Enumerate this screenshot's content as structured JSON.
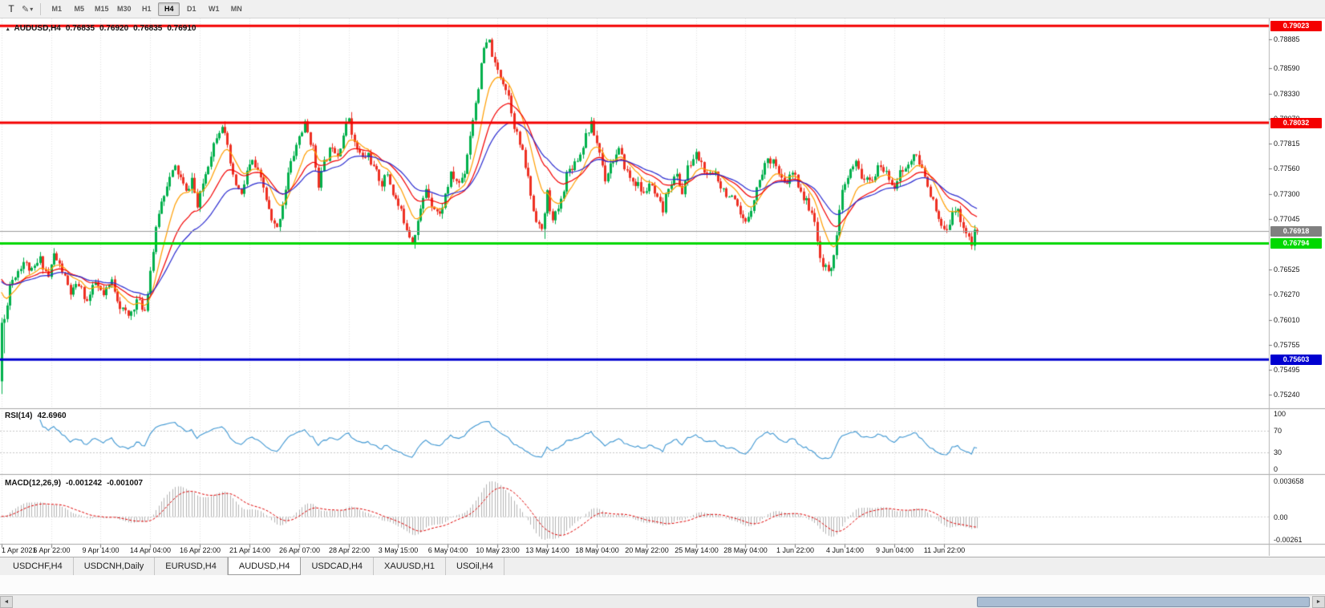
{
  "toolbar": {
    "letter_button": "T",
    "timeframes": [
      "M1",
      "M5",
      "M15",
      "M30",
      "H1",
      "H4",
      "D1",
      "W1",
      "MN"
    ],
    "active_timeframe": "H4"
  },
  "icons": {
    "chart_marker": "▴",
    "pencil": "✎",
    "caret": "▾",
    "scroll_left": "◄",
    "scroll_right": "►"
  },
  "tabs": [
    {
      "label": "USDCHF,H4"
    },
    {
      "label": "USDCNH,Daily"
    },
    {
      "label": "EURUSD,H4"
    },
    {
      "label": "AUDUSD,H4",
      "active": true
    },
    {
      "label": "USDCAD,H4"
    },
    {
      "label": "XAUUSD,H1"
    },
    {
      "label": "USOil,H4"
    }
  ],
  "scrollbar": {
    "thumb_start": 0.742,
    "thumb_span": 0.256,
    "left_glyph": "◄",
    "right_glyph": "►"
  },
  "chart_data": {
    "type": "candlestick",
    "title": "AUDUSD,H4",
    "ohlc_display": [
      "0.76835",
      "0.76920",
      "0.76835",
      "0.76910"
    ],
    "price_axis": {
      "min": 0.7512,
      "max": 0.791,
      "ticks": [
        "0.78885",
        "0.78590",
        "0.78330",
        "0.78070",
        "0.77815",
        "0.77560",
        "0.77300",
        "0.77045",
        "0.76525",
        "0.76270",
        "0.76010",
        "0.75755",
        "0.75495",
        "0.75240"
      ]
    },
    "time_ticks": [
      "1 Apr 2021",
      "6 Apr 22:00",
      "9 Apr 14:00",
      "14 Apr 04:00",
      "16 Apr 22:00",
      "21 Apr 14:00",
      "26 Apr 07:00",
      "28 Apr 22:00",
      "3 May 15:00",
      "6 May 04:00",
      "10 May 23:00",
      "13 May 14:00",
      "18 May 04:00",
      "20 May 22:00",
      "25 May 14:00",
      "28 May 04:00",
      "1 Jun 22:00",
      "4 Jun 14:00",
      "9 Jun 04:00",
      "11 Jun 22:00"
    ],
    "candles_per_time_tick": 18,
    "candle_count": 355,
    "first_candle": [
      0.7538,
      0.7603,
      0.7525,
      0.7598
    ],
    "last_close": 0.7691,
    "noise": 0.0009,
    "seed": 11,
    "price_path": [
      [
        0,
        0.7538
      ],
      [
        2,
        0.7601
      ],
      [
        4,
        0.7638
      ],
      [
        7,
        0.7652
      ],
      [
        9,
        0.7661
      ],
      [
        12,
        0.765
      ],
      [
        15,
        0.7663
      ],
      [
        18,
        0.7645
      ],
      [
        20,
        0.7668
      ],
      [
        23,
        0.7651
      ],
      [
        26,
        0.7628
      ],
      [
        29,
        0.7637
      ],
      [
        32,
        0.762
      ],
      [
        35,
        0.7639
      ],
      [
        38,
        0.7625
      ],
      [
        41,
        0.7641
      ],
      [
        44,
        0.7615
      ],
      [
        47,
        0.7604
      ],
      [
        50,
        0.7621
      ],
      [
        53,
        0.7611
      ],
      [
        55,
        0.7652
      ],
      [
        58,
        0.7712
      ],
      [
        61,
        0.7741
      ],
      [
        64,
        0.7757
      ],
      [
        66,
        0.7746
      ],
      [
        68,
        0.7731
      ],
      [
        70,
        0.7746
      ],
      [
        72,
        0.7716
      ],
      [
        74,
        0.7741
      ],
      [
        77,
        0.7772
      ],
      [
        79,
        0.7791
      ],
      [
        81,
        0.7802
      ],
      [
        83,
        0.7776
      ],
      [
        85,
        0.7746
      ],
      [
        88,
        0.7728
      ],
      [
        90,
        0.7753
      ],
      [
        92,
        0.7763
      ],
      [
        94,
        0.7751
      ],
      [
        96,
        0.7736
      ],
      [
        99,
        0.7701
      ],
      [
        101,
        0.7694
      ],
      [
        103,
        0.7721
      ],
      [
        105,
        0.7751
      ],
      [
        107,
        0.7771
      ],
      [
        109,
        0.7789
      ],
      [
        111,
        0.7801
      ],
      [
        114,
        0.7776
      ],
      [
        116,
        0.7741
      ],
      [
        118,
        0.7761
      ],
      [
        121,
        0.7781
      ],
      [
        123,
        0.7771
      ],
      [
        125,
        0.7791
      ],
      [
        127,
        0.7809
      ],
      [
        129,
        0.7781
      ],
      [
        132,
        0.7766
      ],
      [
        134,
        0.7771
      ],
      [
        136,
        0.7756
      ],
      [
        139,
        0.7741
      ],
      [
        141,
        0.7751
      ],
      [
        143,
        0.7731
      ],
      [
        146,
        0.7711
      ],
      [
        148,
        0.7696
      ],
      [
        150,
        0.7681
      ],
      [
        153,
        0.7713
      ],
      [
        155,
        0.7736
      ],
      [
        157,
        0.7721
      ],
      [
        160,
        0.7708
      ],
      [
        162,
        0.7729
      ],
      [
        164,
        0.7749
      ],
      [
        167,
        0.7741
      ],
      [
        169,
        0.7753
      ],
      [
        171,
        0.7791
      ],
      [
        174,
        0.7841
      ],
      [
        176,
        0.7879
      ],
      [
        178,
        0.7886
      ],
      [
        180,
        0.7861
      ],
      [
        183,
        0.7846
      ],
      [
        185,
        0.7831
      ],
      [
        187,
        0.7801
      ],
      [
        190,
        0.7771
      ],
      [
        192,
        0.7746
      ],
      [
        194,
        0.7713
      ],
      [
        197,
        0.7691
      ],
      [
        199,
        0.7731
      ],
      [
        201,
        0.7701
      ],
      [
        204,
        0.7723
      ],
      [
        206,
        0.7751
      ],
      [
        208,
        0.7759
      ],
      [
        211,
        0.7771
      ],
      [
        213,
        0.7791
      ],
      [
        215,
        0.7801
      ],
      [
        218,
        0.7773
      ],
      [
        220,
        0.7746
      ],
      [
        222,
        0.7761
      ],
      [
        225,
        0.7774
      ],
      [
        227,
        0.7759
      ],
      [
        229,
        0.7746
      ],
      [
        232,
        0.7739
      ],
      [
        234,
        0.7729
      ],
      [
        236,
        0.7741
      ],
      [
        239,
        0.7723
      ],
      [
        241,
        0.7713
      ],
      [
        243,
        0.7739
      ],
      [
        246,
        0.7749
      ],
      [
        248,
        0.7731
      ],
      [
        250,
        0.7756
      ],
      [
        253,
        0.7771
      ],
      [
        255,
        0.7761
      ],
      [
        257,
        0.7746
      ],
      [
        260,
        0.7753
      ],
      [
        262,
        0.7739
      ],
      [
        264,
        0.7731
      ],
      [
        267,
        0.7721
      ],
      [
        269,
        0.7706
      ],
      [
        271,
        0.7699
      ],
      [
        274,
        0.7726
      ],
      [
        276,
        0.7745
      ],
      [
        278,
        0.7761
      ],
      [
        281,
        0.7768
      ],
      [
        283,
        0.7749
      ],
      [
        285,
        0.7739
      ],
      [
        288,
        0.7751
      ],
      [
        290,
        0.7741
      ],
      [
        292,
        0.7726
      ],
      [
        295,
        0.7713
      ],
      [
        297,
        0.7681
      ],
      [
        299,
        0.7656
      ],
      [
        302,
        0.7651
      ],
      [
        304,
        0.7691
      ],
      [
        306,
        0.7731
      ],
      [
        309,
        0.7753
      ],
      [
        311,
        0.7761
      ],
      [
        313,
        0.7749
      ],
      [
        316,
        0.7741
      ],
      [
        318,
        0.7751
      ],
      [
        320,
        0.7759
      ],
      [
        323,
        0.7746
      ],
      [
        325,
        0.7739
      ],
      [
        327,
        0.7751
      ],
      [
        330,
        0.7759
      ],
      [
        332,
        0.7771
      ],
      [
        334,
        0.7761
      ],
      [
        337,
        0.7741
      ],
      [
        339,
        0.7721
      ],
      [
        341,
        0.7701
      ],
      [
        344,
        0.7689
      ],
      [
        346,
        0.7716
      ],
      [
        348,
        0.7711
      ],
      [
        351,
        0.7691
      ],
      [
        353,
        0.7678
      ],
      [
        354,
        0.7691
      ]
    ],
    "spikes": [
      [
        81,
        1,
        0.78045
      ],
      [
        127,
        1,
        0.7814
      ],
      [
        150,
        2,
        0.7674
      ],
      [
        178,
        1,
        0.789
      ],
      [
        197,
        2,
        0.7684
      ],
      [
        215,
        1,
        0.7808
      ],
      [
        301,
        2,
        0.7646
      ],
      [
        352,
        2,
        0.7673
      ]
    ],
    "mas": [
      {
        "period": 10,
        "color_key": "ma_fast"
      },
      {
        "period": 21,
        "color_key": "ma_mid"
      },
      {
        "period": 34,
        "color_key": "ma_slow"
      }
    ],
    "levels": [
      {
        "price": 0.79023,
        "label": "0.79023",
        "color": "#f40000",
        "width": 3
      },
      {
        "price": 0.78032,
        "label": "0.78032",
        "color": "#f40000",
        "width": 3
      },
      {
        "price": 0.76794,
        "label": "0.76794",
        "color": "#00d800",
        "width": 3
      },
      {
        "price": 0.75603,
        "label": "0.75603",
        "color": "#0000d0",
        "width": 3
      }
    ],
    "current_price": {
      "value": 0.76918,
      "label": "0.76918",
      "badge_color": "#808080"
    },
    "rsi": {
      "title": "RSI(14)",
      "period": 14,
      "value": "42.6960",
      "ticks": [
        "100",
        "70",
        "30",
        "0"
      ],
      "levels": [
        70,
        30
      ]
    },
    "macd": {
      "title": "MACD(12,26,9)",
      "fast": 12,
      "slow": 26,
      "signal": 9,
      "value_main": "-0.001242",
      "value_signal": "-0.001007",
      "ticks_max": "0.003658",
      "ticks_zero": "0.00",
      "ticks_min": "-0.00261"
    },
    "colors": {
      "bull": "#00b04c",
      "bear": "#ee3023",
      "ma_fast": "#ff9e00",
      "ma_mid": "#f40000",
      "ma_slow": "#2b2bd0",
      "rsi": "#3d96d2",
      "macd_hist": "#b3b3b3",
      "macd_signal": "#e00000",
      "current_line": "#9b9b9b"
    }
  }
}
